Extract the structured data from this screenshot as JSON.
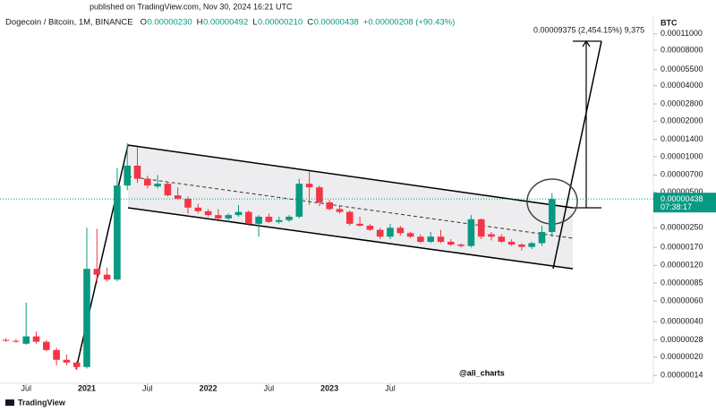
{
  "page": {
    "published": "published on TradingView.com, Nov 30, 2024 16:21 UTC",
    "brand": "TradingView",
    "watermark": "@ali_charts"
  },
  "chart_data": {
    "type": "candlestick",
    "title": "Dogecoin / Bitcoin, 1M, BINANCE",
    "legend_values": [
      "O",
      "0.00000230",
      "H",
      "0.00000492",
      "L",
      "0.00000210",
      "C",
      "0.00000438",
      "+0.00000208 (+90.43%)"
    ],
    "axis_unit": "BTC",
    "price_label": "0.00000438",
    "countdown": "07:38:17",
    "annotation": "0.00009375 (2,454.15%) 9,375",
    "log_scale": true,
    "up_color": "#089981",
    "down_color": "#f23645",
    "x": [
      "2020-05",
      "2020-06",
      "2020-07",
      "2020-08",
      "2020-09",
      "2020-10",
      "2020-11",
      "2020-12",
      "2021-01",
      "2021-02",
      "2021-03",
      "2021-04",
      "2021-05",
      "2021-06",
      "2021-07",
      "2021-08",
      "2021-09",
      "2021-10",
      "2021-11",
      "2021-12",
      "2022-01",
      "2022-02",
      "2022-03",
      "2022-04",
      "2022-05",
      "2022-06",
      "2022-07",
      "2022-08",
      "2022-09",
      "2022-10",
      "2022-11",
      "2022-12",
      "2023-01",
      "2023-02",
      "2023-03",
      "2023-04",
      "2023-05",
      "2023-06",
      "2023-07",
      "2023-08",
      "2023-09",
      "2023-10",
      "2023-11",
      "2023-12",
      "2024-01",
      "2024-02",
      "2024-03",
      "2024-04",
      "2024-05",
      "2024-06",
      "2024-07",
      "2024-08",
      "2024-09",
      "2024-10",
      "2024-11"
    ],
    "open": [
      2.8e-07,
      2.75e-07,
      2.6e-07,
      3e-07,
      2.7e-07,
      2.3e-07,
      1.9e-07,
      1.8e-07,
      1.65e-07,
      1.12e-06,
      1e-06,
      9.1e-07,
      5.7e-06,
      8.4e-06,
      6.5e-06,
      5.6e-06,
      5.9e-06,
      4.7e-06,
      4.4e-06,
      3.7e-06,
      3.45e-06,
      3.2e-06,
      3e-06,
      3.2e-06,
      3.4e-06,
      2.7e-06,
      3.1e-06,
      2.8e-06,
      2.9e-06,
      3.1e-06,
      5.9e-06,
      5.5e-06,
      4.1e-06,
      3.6e-06,
      3.4e-06,
      2.7e-06,
      2.6e-06,
      2.4e-06,
      2.1e-06,
      2.5e-06,
      2.25e-06,
      2.1e-06,
      1.9e-06,
      2.1e-06,
      1.9e-06,
      1.8e-06,
      1.75e-06,
      2.95e-06,
      2.2e-06,
      2.1e-06,
      1.9e-06,
      1.8e-06,
      1.72e-06,
      1.85e-06,
      2.3e-06
    ],
    "high": [
      2.9e-07,
      2.85e-07,
      5.8e-07,
      3.3e-07,
      2.8e-07,
      2.4e-07,
      2.1e-07,
      1.85e-07,
      2.5e-06,
      2.45e-06,
      1.15e-06,
      8e-06,
      1.3e-05,
      1.2e-05,
      6.9e-06,
      7e-06,
      6.1e-06,
      5.5e-06,
      4.6e-06,
      4e-06,
      3.6e-06,
      3.6e-06,
      3.3e-06,
      3.9e-06,
      3.5e-06,
      3.2e-06,
      3.3e-06,
      3.1e-06,
      3.2e-06,
      6.5e-06,
      7.5e-06,
      5.7e-06,
      4.3e-06,
      3.9e-06,
      3.5e-06,
      3.1e-06,
      2.7e-06,
      2.5e-06,
      2.7e-06,
      2.6e-06,
      2.3e-06,
      2.2e-06,
      2.3e-06,
      2.4e-06,
      2e-06,
      1.85e-06,
      3.2e-06,
      3e-06,
      2.3e-06,
      2.2e-06,
      2e-06,
      1.85e-06,
      1.9e-06,
      2.6e-06,
      4.92e-06
    ],
    "low": [
      2.7e-07,
      2.65e-07,
      2.55e-07,
      2.6e-07,
      2.25e-07,
      1.7e-07,
      1.7e-07,
      1.55e-07,
      1.6e-07,
      8.5e-07,
      8.8e-07,
      8.8e-07,
      5.2e-06,
      6e-06,
      5.4e-06,
      5.4e-06,
      4.6e-06,
      4.3e-06,
      3.3e-06,
      3.3e-06,
      3.1e-06,
      2.95e-06,
      2.8e-06,
      3.1e-06,
      2.6e-06,
      2.1e-06,
      2.75e-06,
      2.7e-06,
      2.8e-06,
      3e-06,
      3.9e-06,
      3.8e-06,
      3.5e-06,
      3.3e-06,
      2.6e-06,
      2.55e-06,
      2.35e-06,
      2e-06,
      2e-06,
      2.15e-06,
      2.05e-06,
      1.85e-06,
      1.85e-06,
      1.85e-06,
      1.75e-06,
      1.7e-06,
      1.7e-06,
      2e-06,
      1.95e-06,
      1.85e-06,
      1.75e-06,
      1.6e-06,
      1.65e-06,
      1.75e-06,
      2.1e-06
    ],
    "close": [
      2.75e-07,
      2.7e-07,
      3e-07,
      2.7e-07,
      2.3e-07,
      1.9e-07,
      1.8e-07,
      1.65e-07,
      1.12e-06,
      1e-06,
      9.1e-07,
      5.7e-06,
      8.4e-06,
      6.5e-06,
      5.7e-06,
      5.9e-06,
      4.7e-06,
      4.4e-06,
      3.7e-06,
      3.45e-06,
      3.2e-06,
      3e-06,
      3.2e-06,
      3.4e-06,
      2.7e-06,
      3.1e-06,
      2.8e-06,
      2.9e-06,
      3.1e-06,
      5.9e-06,
      5.5e-06,
      4.1e-06,
      3.6e-06,
      3.4e-06,
      2.7e-06,
      2.6e-06,
      2.4e-06,
      2.1e-06,
      2.5e-06,
      2.25e-06,
      2.1e-06,
      1.9e-06,
      2.1e-06,
      1.9e-06,
      1.8e-06,
      1.75e-06,
      2.95e-06,
      2.1e-06,
      2.1e-06,
      1.9e-06,
      1.8e-06,
      1.72e-06,
      1.85e-06,
      2.3e-06,
      4.38e-06
    ],
    "xticks": [
      {
        "value": "2020-07",
        "label": "Jul"
      },
      {
        "value": "2021-01",
        "label": "2021"
      },
      {
        "value": "2021-07",
        "label": "Jul"
      },
      {
        "value": "2022-01",
        "label": "2022"
      },
      {
        "value": "2022-07",
        "label": "Jul"
      },
      {
        "value": "2023-01",
        "label": "2023"
      },
      {
        "value": "2023-07",
        "label": "Jul"
      }
    ],
    "ylim": [
      1.2e-07,
      0.00015
    ],
    "yticks": [
      {
        "value": 0.00011,
        "label": "0.00011000"
      },
      {
        "value": 8e-05,
        "label": "0.00008000"
      },
      {
        "value": 5.5e-05,
        "label": "0.00005500"
      },
      {
        "value": 4e-05,
        "label": "0.00004000"
      },
      {
        "value": 2.8e-05,
        "label": "0.00002800"
      },
      {
        "value": 2e-05,
        "label": "0.00002000"
      },
      {
        "value": 1.4e-05,
        "label": "0.00001400"
      },
      {
        "value": 1e-05,
        "label": "0.00001000"
      },
      {
        "value": 7e-06,
        "label": "0.00000700"
      },
      {
        "value": 5e-06,
        "label": "0.00000500"
      },
      {
        "value": 2.5e-06,
        "label": "0.00000250"
      },
      {
        "value": 1.7e-06,
        "label": "0.00000170"
      },
      {
        "value": 1.2e-06,
        "label": "0.00000120"
      },
      {
        "value": 8.5e-07,
        "label": "0.00000085"
      },
      {
        "value": 6e-07,
        "label": "0.00000060"
      },
      {
        "value": 4e-07,
        "label": "0.00000040"
      },
      {
        "value": 2.8e-07,
        "label": "0.00000028"
      },
      {
        "value": 2e-07,
        "label": "0.00000020"
      },
      {
        "value": 1.4e-07,
        "label": "0.00000014"
      }
    ]
  }
}
